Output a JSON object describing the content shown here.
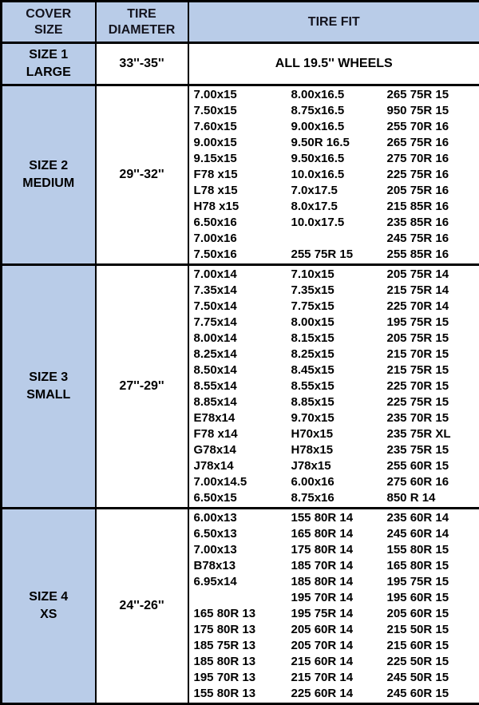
{
  "styles": {
    "header_bg": "#b9cce8",
    "border": "#000000",
    "text": "#000000",
    "header_text": "#14141e"
  },
  "chart_data": {
    "type": "table",
    "title": "Tire cover size fitment chart",
    "columns": [
      "COVER SIZE",
      "TIRE DIAMETER",
      "TIRE FIT"
    ],
    "header_display": [
      "COVER\nSIZE",
      "TIRE\nDIAMETER",
      "TIRE FIT"
    ],
    "layout": {
      "grid": "on",
      "fit_subcolumns": 3
    },
    "sections": [
      {
        "cover_size": "SIZE 1\nLARGE",
        "cover_size_flat": "SIZE 1 LARGE",
        "tire_diameter": "33''-35''",
        "tire_fit_note": "ALL 19.5'' WHEELS",
        "fit_rows": []
      },
      {
        "cover_size": "SIZE 2\nMEDIUM",
        "cover_size_flat": "SIZE 2 MEDIUM",
        "tire_diameter": "29''-32''",
        "fit_rows": [
          [
            "7.00x15",
            "8.00x16.5",
            "265 75R 15"
          ],
          [
            "7.50x15",
            "8.75x16.5",
            "950 75R 15"
          ],
          [
            "7.60x15",
            "9.00x16.5",
            "255 70R 16"
          ],
          [
            "9.00x15",
            "9.50R 16.5",
            "265 75R 16"
          ],
          [
            "9.15x15",
            "9.50x16.5",
            "275 70R 16"
          ],
          [
            "F78 x15",
            "10.0x16.5",
            "225 75R 16"
          ],
          [
            "L78 x15",
            "7.0x17.5",
            "205 75R 16"
          ],
          [
            "H78 x15",
            "8.0x17.5",
            "215 85R 16"
          ],
          [
            "6.50x16",
            "10.0x17.5",
            "235 85R 16"
          ],
          [
            "7.00x16",
            "",
            "245 75R 16"
          ],
          [
            "7.50x16",
            "255 75R 15",
            "255 85R 16"
          ]
        ]
      },
      {
        "cover_size": "SIZE 3\nSMALL",
        "cover_size_flat": "SIZE 3 SMALL",
        "tire_diameter": "27''-29''",
        "fit_rows": [
          [
            "7.00x14",
            "7.10x15",
            "205 75R 14"
          ],
          [
            "7.35x14",
            "7.35x15",
            "215 75R 14"
          ],
          [
            "7.50x14",
            "7.75x15",
            "225 70R 14"
          ],
          [
            "7.75x14",
            "8.00x15",
            "195 75R 15"
          ],
          [
            "8.00x14",
            "8.15x15",
            "205 75R 15"
          ],
          [
            "8.25x14",
            "8.25x15",
            "215 70R 15"
          ],
          [
            "8.50x14",
            "8.45x15",
            "215 75R 15"
          ],
          [
            "8.55x14",
            "8.55x15",
            "225 70R 15"
          ],
          [
            "8.85x14",
            "8.85x15",
            "225 75R 15"
          ],
          [
            "E78x14",
            "9.70x15",
            "235 70R 15"
          ],
          [
            "F78 x14",
            "H70x15",
            "235 75R XL"
          ],
          [
            "G78x14",
            "H78x15",
            "235 75R 15"
          ],
          [
            "J78x14",
            "J78x15",
            "255 60R 15"
          ],
          [
            "7.00x14.5",
            "6.00x16",
            "275 60R 16"
          ],
          [
            "6.50x15",
            "8.75x16",
            "850 R 14"
          ]
        ]
      },
      {
        "cover_size": "SIZE 4\nXS",
        "cover_size_flat": "SIZE 4 XS",
        "tire_diameter": "24''-26''",
        "fit_rows": [
          [
            "6.00x13",
            "155 80R 14",
            "235 60R 14"
          ],
          [
            "6.50x13",
            "165 80R 14",
            "245 60R 14"
          ],
          [
            "7.00x13",
            "175 80R 14",
            "155 80R 15"
          ],
          [
            "B78x13",
            "185 70R 14",
            "165 80R 15"
          ],
          [
            "6.95x14",
            "185 80R 14",
            "195 75R 15"
          ],
          [
            "",
            "195 70R 14",
            "195 60R 15"
          ],
          [
            "165 80R 13",
            "195 75R 14",
            "205 60R 15"
          ],
          [
            "175 80R 13",
            "205 60R 14",
            "215 50R 15"
          ],
          [
            "185 75R 13",
            "205 70R 14",
            "215 60R 15"
          ],
          [
            "185 80R 13",
            "215 60R 14",
            "225 50R 15"
          ],
          [
            "195 70R 13",
            "215 70R 14",
            "245 50R 15"
          ],
          [
            "155 80R 13",
            "225 60R 14",
            "245 60R 15"
          ]
        ]
      }
    ]
  }
}
